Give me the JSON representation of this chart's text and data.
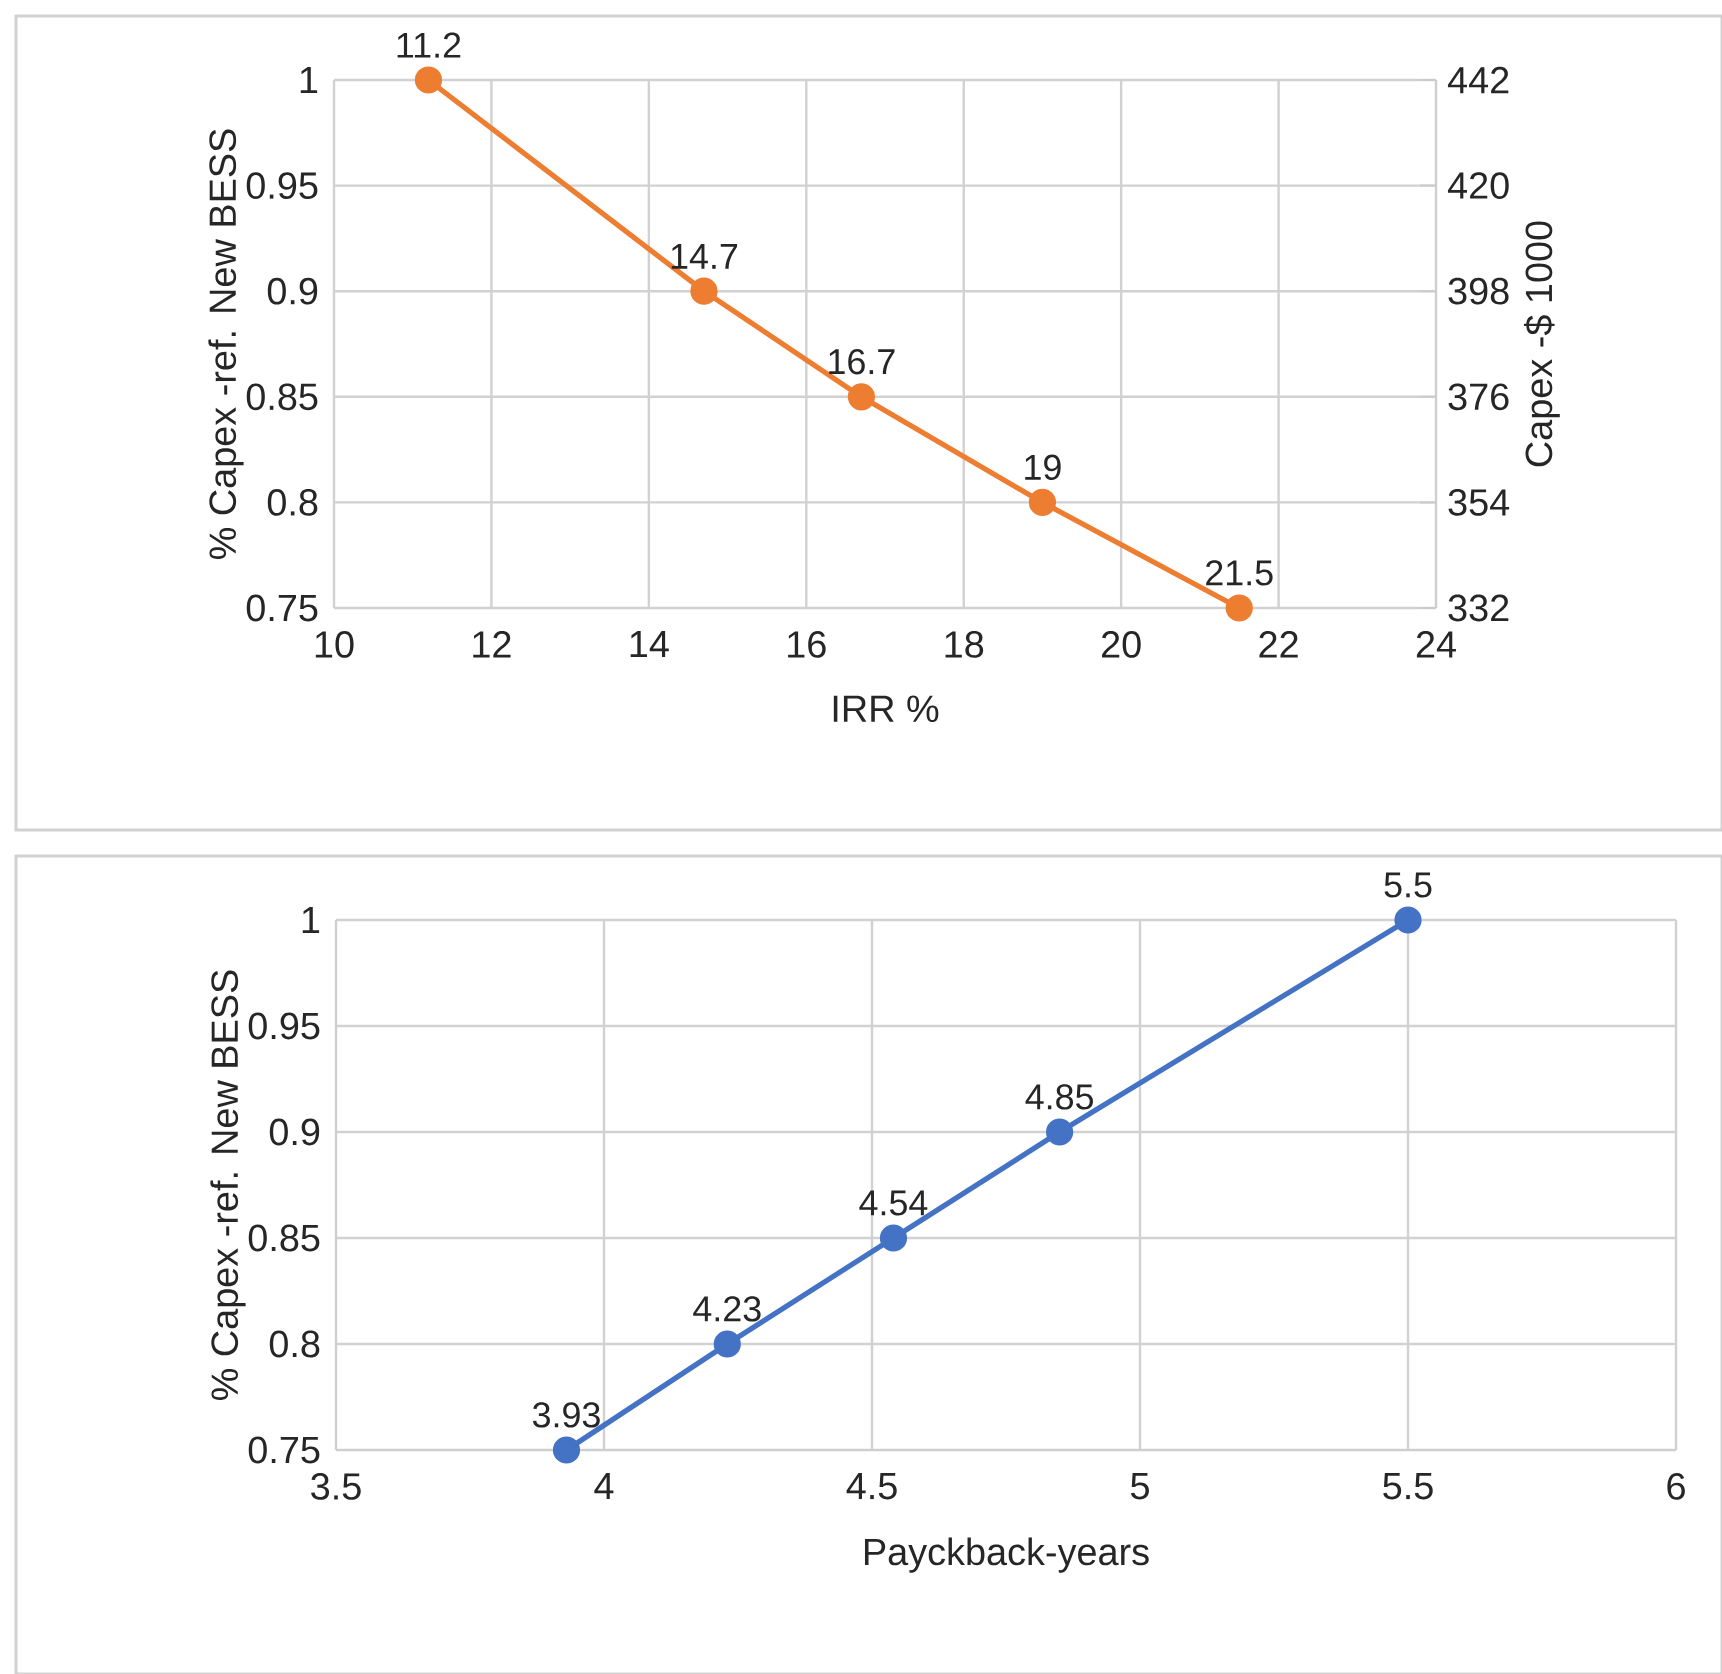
{
  "chart_data": [
    {
      "type": "line",
      "xlabel": "IRR %",
      "ylabel": "% Capex -ref. New BESS",
      "y2label": "Capex -$ 1000",
      "x": [
        11.2,
        14.7,
        16.7,
        19,
        21.5
      ],
      "series": [
        {
          "color": "#ed7d31",
          "values": [
            1,
            0.9,
            0.85,
            0.8,
            0.75
          ]
        }
      ],
      "annotations": [
        {
          "text": "11.2",
          "x": 11.2,
          "y": 1
        },
        {
          "text": "14.7",
          "x": 14.7,
          "y": 0.9
        },
        {
          "text": "16.7",
          "x": 16.7,
          "y": 0.85
        },
        {
          "text": "19",
          "x": 19,
          "y": 0.8
        },
        {
          "text": "21.5",
          "x": 21.5,
          "y": 0.75
        }
      ],
      "xlim": [
        10,
        24
      ],
      "xticks": [
        10,
        12,
        14,
        16,
        18,
        20,
        22,
        24
      ],
      "ylim": [
        0.75,
        1
      ],
      "yticks": [
        0.75,
        0.8,
        0.85,
        0.9,
        0.95,
        1
      ],
      "y2lim": [
        332,
        442
      ],
      "y2ticks": [
        332,
        354,
        376,
        398,
        420,
        442
      ],
      "grid": true,
      "marker": "circle",
      "line_style": "solid"
    },
    {
      "type": "line",
      "xlabel": "Payckback-years",
      "ylabel": "% Capex -ref. New BESS",
      "x": [
        3.93,
        4.23,
        4.54,
        4.85,
        5.5
      ],
      "series": [
        {
          "color": "#4472c4",
          "values": [
            0.75,
            0.8,
            0.85,
            0.9,
            1
          ]
        }
      ],
      "annotations": [
        {
          "text": "3.93",
          "x": 3.93,
          "y": 0.75
        },
        {
          "text": "4.23",
          "x": 4.23,
          "y": 0.8
        },
        {
          "text": "4.54",
          "x": 4.54,
          "y": 0.85
        },
        {
          "text": "4.85",
          "x": 4.85,
          "y": 0.9
        },
        {
          "text": "5.5",
          "x": 5.5,
          "y": 1
        }
      ],
      "xlim": [
        3.5,
        6
      ],
      "xticks": [
        3.5,
        4,
        4.5,
        5,
        5.5,
        6
      ],
      "ylim": [
        0.75,
        1
      ],
      "yticks": [
        0.75,
        0.8,
        0.85,
        0.9,
        0.95,
        1
      ],
      "grid": true,
      "marker": "circle",
      "line_style": "solid"
    }
  ]
}
